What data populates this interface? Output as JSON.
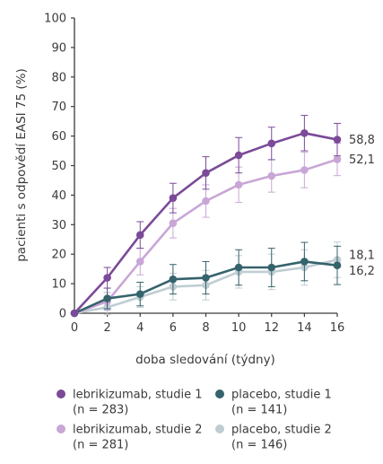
{
  "chart_data": {
    "type": "line",
    "xlabel": "doba sledování (týdny)",
    "ylabel": "pacienti s odpovědí EASI 75 (%)",
    "x": [
      0,
      2,
      4,
      6,
      8,
      10,
      12,
      14,
      16
    ],
    "xticks": [
      0,
      2,
      4,
      6,
      8,
      10,
      12,
      14,
      16
    ],
    "yticks": [
      0,
      10,
      20,
      30,
      40,
      50,
      60,
      70,
      80,
      90,
      100
    ],
    "xlim": [
      0,
      16
    ],
    "ylim": [
      0,
      100
    ],
    "grid": false,
    "legend_position": "bottom",
    "series": [
      {
        "name": "lebrikizumab, studie 1",
        "sample": "(n = 283)",
        "color": "#7b4a98",
        "values": [
          0,
          12,
          26.5,
          39,
          47.5,
          53.5,
          57.5,
          61,
          58.8
        ],
        "errors": [
          0,
          3.5,
          4.5,
          5,
          5.5,
          6,
          5.5,
          6,
          5.5
        ],
        "end_label": "58,8"
      },
      {
        "name": "lebrikizumab, studie 2",
        "sample": "(n = 281)",
        "color": "#c9a6d6",
        "values": [
          0,
          4,
          17.5,
          30.5,
          38,
          43.5,
          46.5,
          48.5,
          52.1
        ],
        "errors": [
          0,
          3,
          4.5,
          5,
          5.5,
          6,
          5.5,
          6,
          5.5
        ],
        "end_label": "52,1"
      },
      {
        "name": "placebo, studie 1",
        "sample": "(n = 141)",
        "color": "#35636c",
        "values": [
          0,
          5,
          6.5,
          11.5,
          12,
          15.5,
          15.5,
          17.5,
          16.2
        ],
        "errors": [
          0,
          3.5,
          4,
          5,
          5.5,
          6,
          6.5,
          6.5,
          6.5
        ],
        "end_label": "16,2"
      },
      {
        "name": "placebo, studie 2",
        "sample": "(n = 146)",
        "color": "#bfcdd3",
        "values": [
          0,
          2,
          5.5,
          9,
          9.5,
          14,
          14,
          15.5,
          18.1
        ],
        "errors": [
          0,
          2.5,
          3.5,
          4.5,
          5,
          5.5,
          6,
          6,
          6
        ],
        "end_label": "18,1"
      }
    ]
  }
}
